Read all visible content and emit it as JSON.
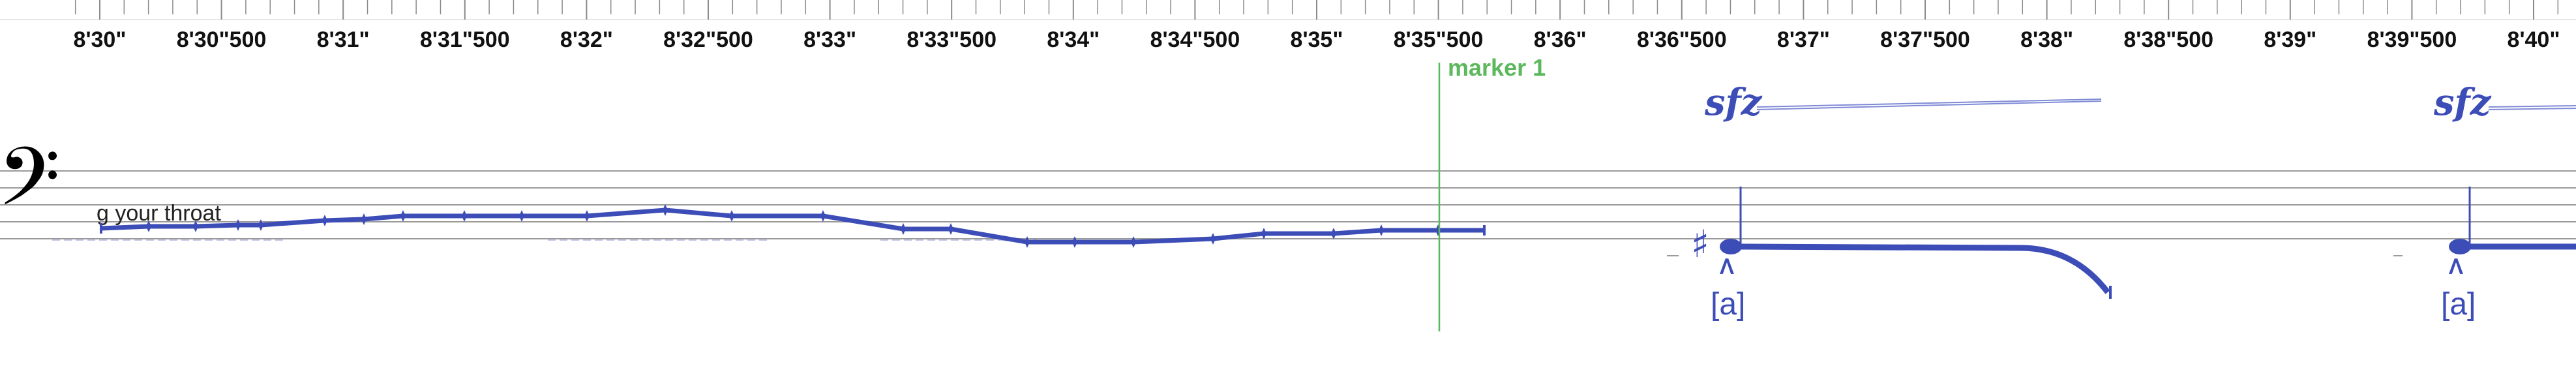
{
  "ruler": {
    "labels": [
      "8'30\"",
      "8'30\"500",
      "8'31\"",
      "8'31\"500",
      "8'32\"",
      "8'32\"500",
      "8'33\"",
      "8'33\"500",
      "8'34\"",
      "8'34\"500",
      "8'35\"",
      "8'35\"500",
      "8'36\"",
      "8'36\"500",
      "8'37\"",
      "8'37\"500",
      "8'38\"",
      "8'38\"500",
      "8'39\"",
      "8'39\"500",
      "8'40\""
    ]
  },
  "marker": {
    "label": "marker 1",
    "color": "#5cb85c"
  },
  "staff": {
    "clef": "𝄢",
    "lyric": "g your throat"
  },
  "notes": [
    {
      "dynamic": "sfz",
      "accidental": "♯",
      "articulation": ">",
      "phoneme": "[a]"
    },
    {
      "dynamic": "sfz",
      "accidental": "",
      "articulation": ">",
      "phoneme": "[a]"
    }
  ],
  "colors": {
    "score": "#3d4db7",
    "hairpin": "#7f8ad6",
    "staff_line": "#9a9a9a"
  }
}
